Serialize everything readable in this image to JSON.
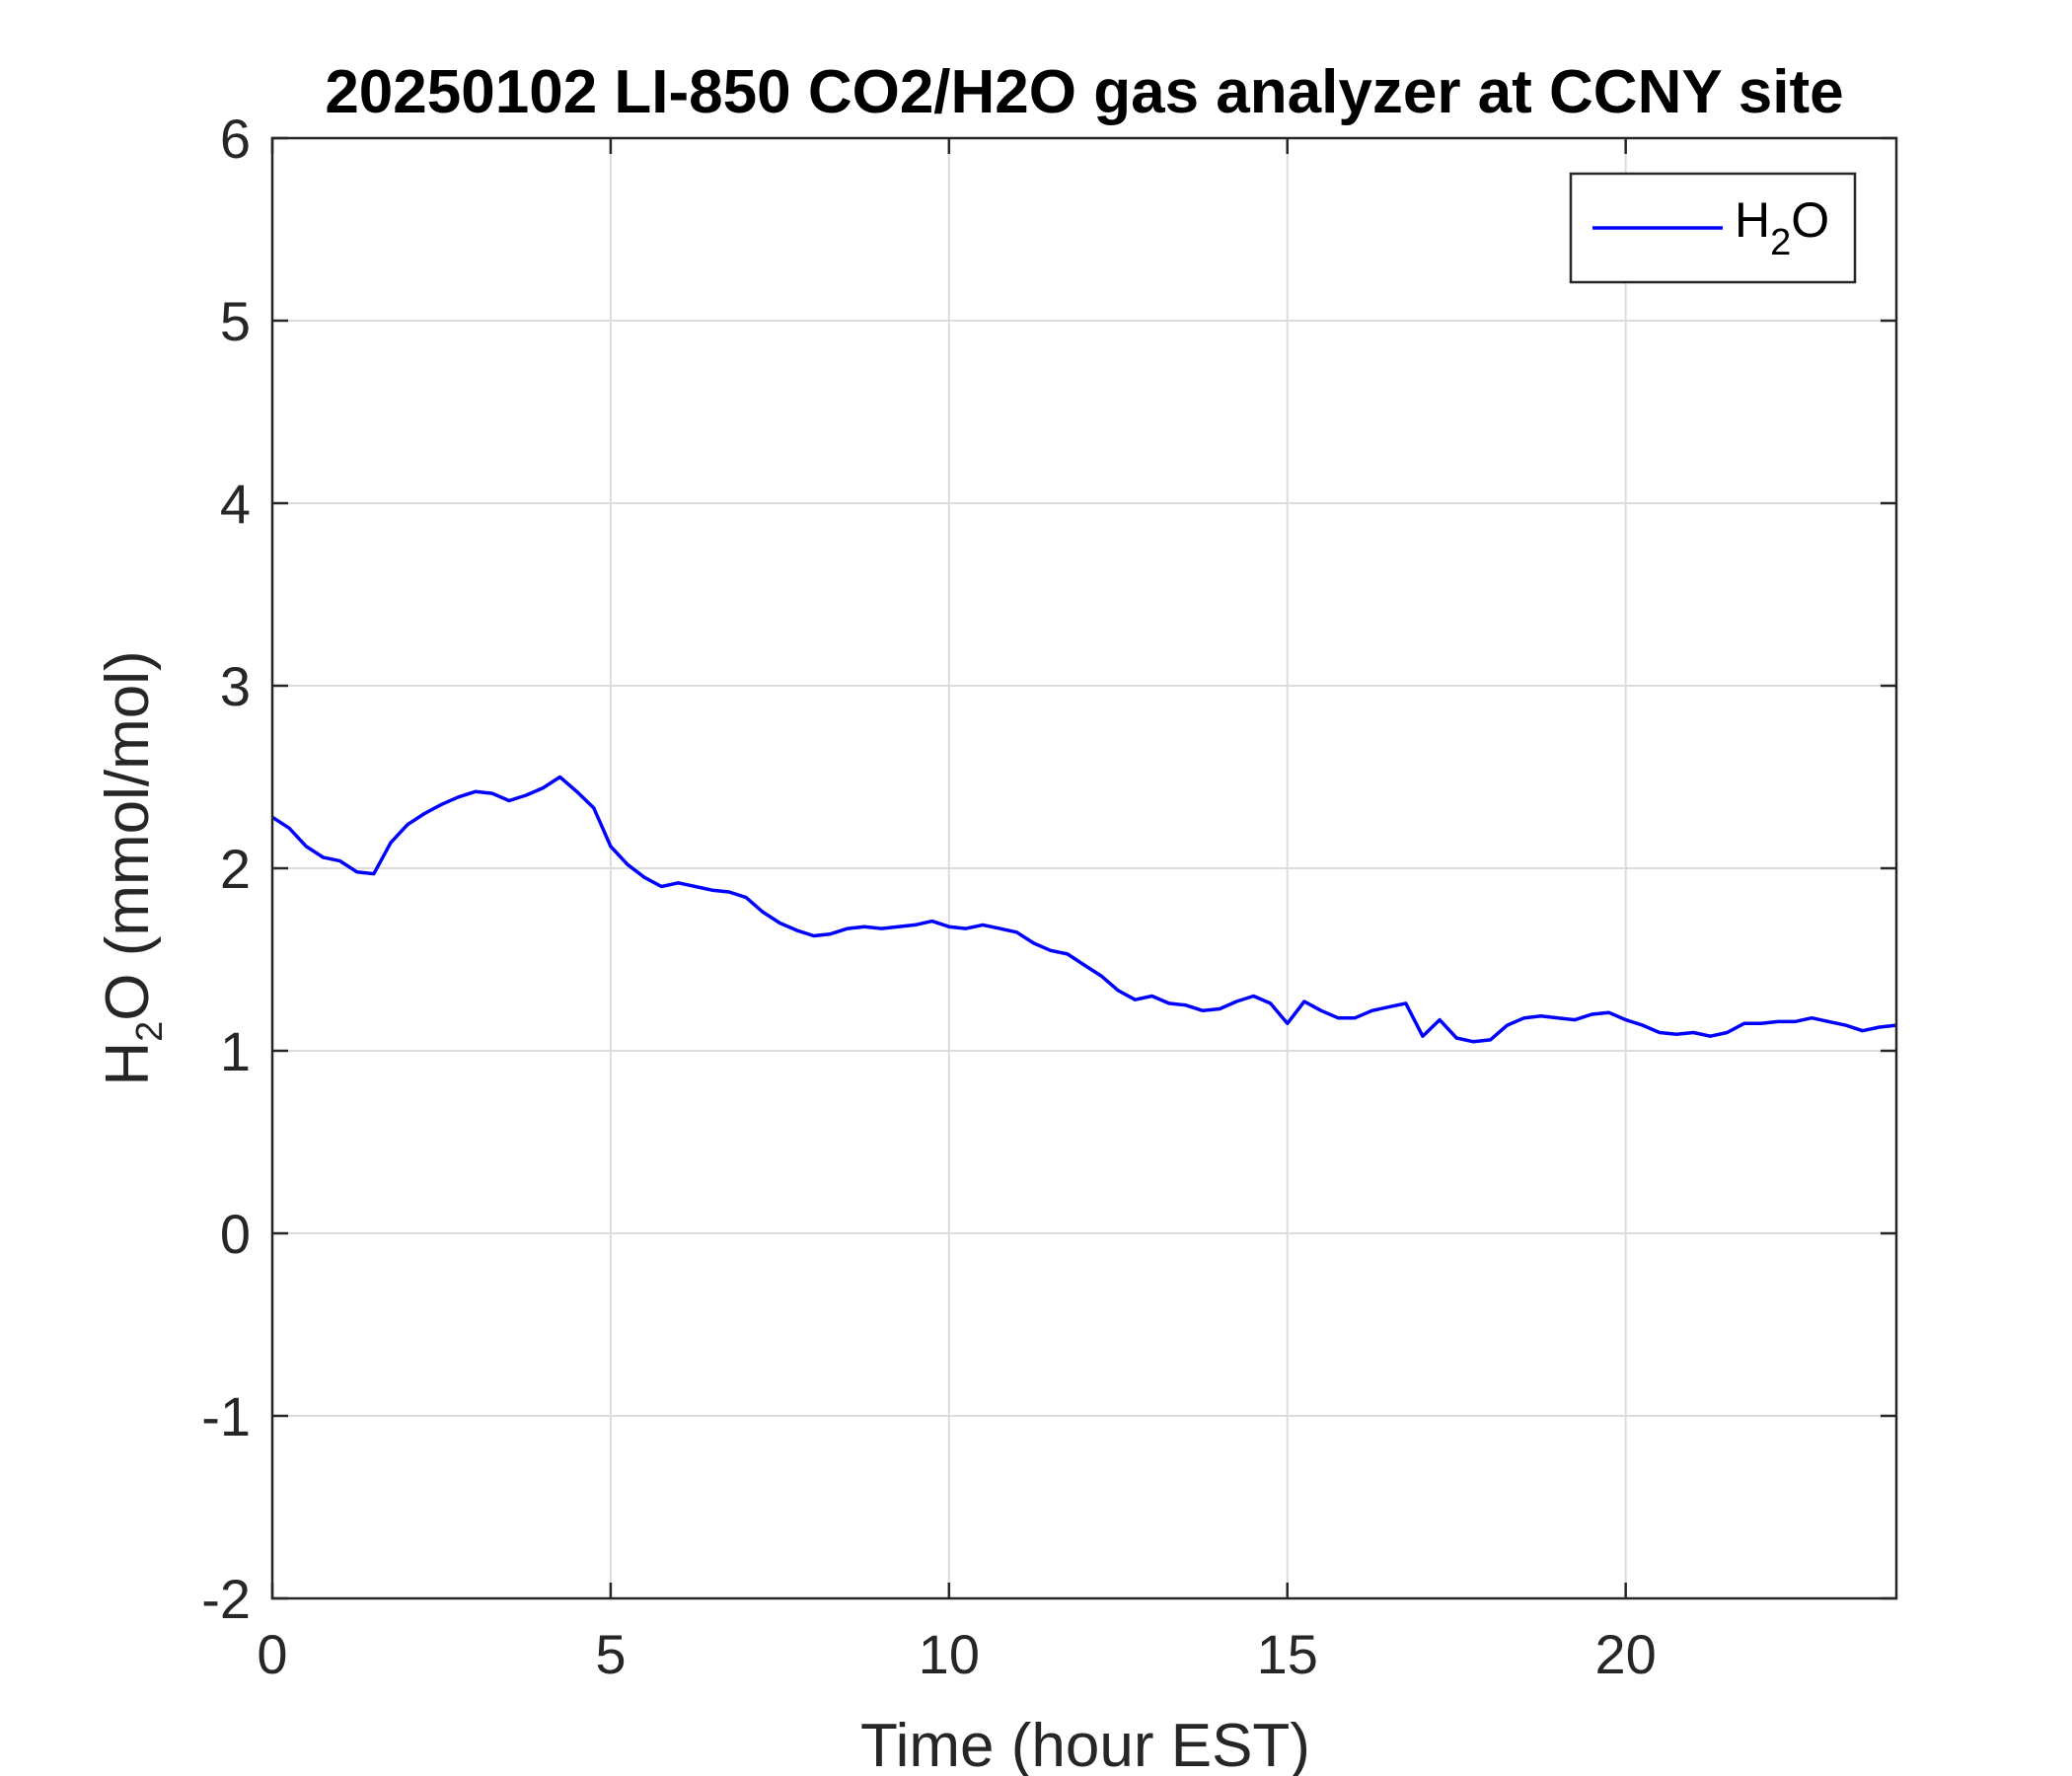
{
  "chart_data": {
    "type": "line",
    "title": "20250102 LI-850 CO2/H2O gas analyzer at CCNY site",
    "xlabel": "Time (hour EST)",
    "ylabel": {
      "pre": "H",
      "sub": "2",
      "post": "O (mmol/mol)"
    },
    "xlim": [
      0,
      24
    ],
    "ylim": [
      -2,
      6
    ],
    "xticks": [
      0,
      5,
      10,
      15,
      20
    ],
    "yticks": [
      -2,
      -1,
      0,
      1,
      2,
      3,
      4,
      5,
      6
    ],
    "grid": true,
    "legend_position": "top-right",
    "series": [
      {
        "name": {
          "pre": "H",
          "sub": "2",
          "post": "O"
        },
        "color": "#0000ff",
        "x": [
          0,
          0.25,
          0.5,
          0.75,
          1.0,
          1.25,
          1.5,
          1.75,
          2.0,
          2.25,
          2.5,
          2.75,
          3.0,
          3.25,
          3.5,
          3.75,
          4.0,
          4.25,
          4.5,
          4.75,
          5.0,
          5.25,
          5.5,
          5.75,
          6.0,
          6.25,
          6.5,
          6.75,
          7.0,
          7.25,
          7.5,
          7.75,
          8.0,
          8.25,
          8.5,
          8.75,
          9.0,
          9.25,
          9.5,
          9.75,
          10.0,
          10.25,
          10.5,
          10.75,
          11.0,
          11.25,
          11.5,
          11.75,
          12.0,
          12.25,
          12.5,
          12.75,
          13.0,
          13.25,
          13.5,
          13.75,
          14.0,
          14.25,
          14.5,
          14.75,
          15.0,
          15.25,
          15.5,
          15.75,
          16.0,
          16.25,
          16.5,
          16.75,
          17.0,
          17.25,
          17.5,
          17.75,
          18.0,
          18.25,
          18.5,
          18.75,
          19.0,
          19.25,
          19.5,
          19.75,
          20.0,
          20.25,
          20.5,
          20.75,
          21.0,
          21.25,
          21.5,
          21.75,
          22.0,
          22.25,
          22.5,
          22.75,
          23.0,
          23.25,
          23.5,
          23.75,
          24.0
        ],
        "y": [
          2.28,
          2.22,
          2.12,
          2.06,
          2.04,
          1.98,
          1.97,
          2.14,
          2.24,
          2.3,
          2.35,
          2.39,
          2.42,
          2.41,
          2.37,
          2.4,
          2.44,
          2.5,
          2.42,
          2.33,
          2.12,
          2.02,
          1.95,
          1.9,
          1.92,
          1.9,
          1.88,
          1.87,
          1.84,
          1.76,
          1.7,
          1.66,
          1.63,
          1.64,
          1.67,
          1.68,
          1.67,
          1.68,
          1.69,
          1.71,
          1.68,
          1.67,
          1.69,
          1.67,
          1.65,
          1.59,
          1.55,
          1.53,
          1.47,
          1.41,
          1.33,
          1.28,
          1.3,
          1.26,
          1.25,
          1.22,
          1.23,
          1.27,
          1.3,
          1.26,
          1.15,
          1.27,
          1.22,
          1.18,
          1.18,
          1.22,
          1.24,
          1.26,
          1.08,
          1.17,
          1.07,
          1.05,
          1.06,
          1.14,
          1.18,
          1.19,
          1.18,
          1.17,
          1.2,
          1.21,
          1.17,
          1.14,
          1.1,
          1.09,
          1.1,
          1.08,
          1.1,
          1.15,
          1.15,
          1.16,
          1.16,
          1.18,
          1.16,
          1.14,
          1.11,
          1.13,
          1.14
        ]
      }
    ]
  }
}
